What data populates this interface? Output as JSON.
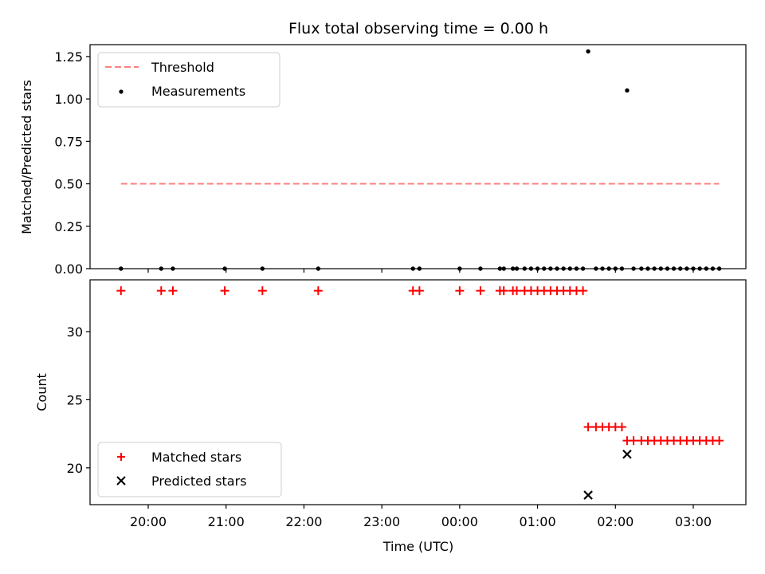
{
  "chart_data": [
    {
      "type": "scatter",
      "title": "Flux total observing time = 0.00 h",
      "xlabel": "",
      "ylabel": "Matched/Predicted stars",
      "ylim": [
        0,
        1.32
      ],
      "yticks": [
        "0.00",
        "0.25",
        "0.50",
        "0.75",
        "1.00",
        "1.25"
      ],
      "legend_position": "upper-left",
      "threshold": {
        "name": "Threshold",
        "value": 0.5,
        "x_start": "19:39",
        "x_end": "03:20",
        "color": "#ff7f7f"
      },
      "series": [
        {
          "name": "Measurements",
          "color": "#000000",
          "points": [
            [
              "19:39",
              0
            ],
            [
              "20:10",
              0
            ],
            [
              "20:19",
              0
            ],
            [
              "20:59",
              0
            ],
            [
              "21:28",
              0
            ],
            [
              "22:11",
              0
            ],
            [
              "23:24",
              0
            ],
            [
              "23:29",
              0
            ],
            [
              "00:00",
              0
            ],
            [
              "00:16",
              0
            ],
            [
              "00:31",
              0
            ],
            [
              "00:34",
              0
            ],
            [
              "00:41",
              0
            ],
            [
              "00:44",
              0
            ],
            [
              "00:50",
              0
            ],
            [
              "00:55",
              0
            ],
            [
              "01:00",
              0
            ],
            [
              "01:05",
              0
            ],
            [
              "01:10",
              0
            ],
            [
              "01:15",
              0
            ],
            [
              "01:20",
              0
            ],
            [
              "01:25",
              0
            ],
            [
              "01:30",
              0
            ],
            [
              "01:35",
              0
            ],
            [
              "01:39",
              1.28
            ],
            [
              "01:45",
              0
            ],
            [
              "01:50",
              0
            ],
            [
              "01:55",
              0
            ],
            [
              "02:00",
              0
            ],
            [
              "02:05",
              0
            ],
            [
              "02:09",
              1.05
            ],
            [
              "02:14",
              0
            ],
            [
              "02:20",
              0
            ],
            [
              "02:25",
              0
            ],
            [
              "02:30",
              0
            ],
            [
              "02:35",
              0
            ],
            [
              "02:40",
              0
            ],
            [
              "02:45",
              0
            ],
            [
              "02:50",
              0
            ],
            [
              "02:55",
              0
            ],
            [
              "03:00",
              0
            ],
            [
              "03:05",
              0
            ],
            [
              "03:10",
              0
            ],
            [
              "03:15",
              0
            ],
            [
              "03:20",
              0
            ]
          ]
        }
      ]
    },
    {
      "type": "scatter",
      "title": "",
      "xlabel": "Time (UTC)",
      "ylabel": "Count",
      "ylim": [
        17.3,
        33.8
      ],
      "yticks": [
        "20",
        "25",
        "30"
      ],
      "xticks": [
        "20:00",
        "21:00",
        "22:00",
        "23:00",
        "00:00",
        "01:00",
        "02:00",
        "03:00"
      ],
      "legend_position": "lower-left",
      "series": [
        {
          "name": "Matched stars",
          "marker": "plus",
          "color": "#ff0000",
          "points": [
            [
              "19:39",
              33
            ],
            [
              "20:10",
              33
            ],
            [
              "20:19",
              33
            ],
            [
              "20:59",
              33
            ],
            [
              "21:28",
              33
            ],
            [
              "22:11",
              33
            ],
            [
              "23:24",
              33
            ],
            [
              "23:29",
              33
            ],
            [
              "00:00",
              33
            ],
            [
              "00:16",
              33
            ],
            [
              "00:31",
              33
            ],
            [
              "00:34",
              33
            ],
            [
              "00:41",
              33
            ],
            [
              "00:44",
              33
            ],
            [
              "00:50",
              33
            ],
            [
              "00:55",
              33
            ],
            [
              "01:00",
              33
            ],
            [
              "01:05",
              33
            ],
            [
              "01:10",
              33
            ],
            [
              "01:15",
              33
            ],
            [
              "01:20",
              33
            ],
            [
              "01:25",
              33
            ],
            [
              "01:30",
              33
            ],
            [
              "01:35",
              33
            ],
            [
              "01:39",
              23
            ],
            [
              "01:45",
              23
            ],
            [
              "01:50",
              23
            ],
            [
              "01:55",
              23
            ],
            [
              "02:00",
              23
            ],
            [
              "02:05",
              23
            ],
            [
              "02:09",
              22
            ],
            [
              "02:14",
              22
            ],
            [
              "02:20",
              22
            ],
            [
              "02:25",
              22
            ],
            [
              "02:30",
              22
            ],
            [
              "02:35",
              22
            ],
            [
              "02:40",
              22
            ],
            [
              "02:45",
              22
            ],
            [
              "02:50",
              22
            ],
            [
              "02:55",
              22
            ],
            [
              "03:00",
              22
            ],
            [
              "03:05",
              22
            ],
            [
              "03:10",
              22
            ],
            [
              "03:15",
              22
            ],
            [
              "03:20",
              22
            ]
          ]
        },
        {
          "name": "Predicted stars",
          "marker": "x",
          "color": "#000000",
          "points": [
            [
              "01:39",
              18
            ],
            [
              "02:09",
              21
            ]
          ]
        }
      ]
    }
  ]
}
